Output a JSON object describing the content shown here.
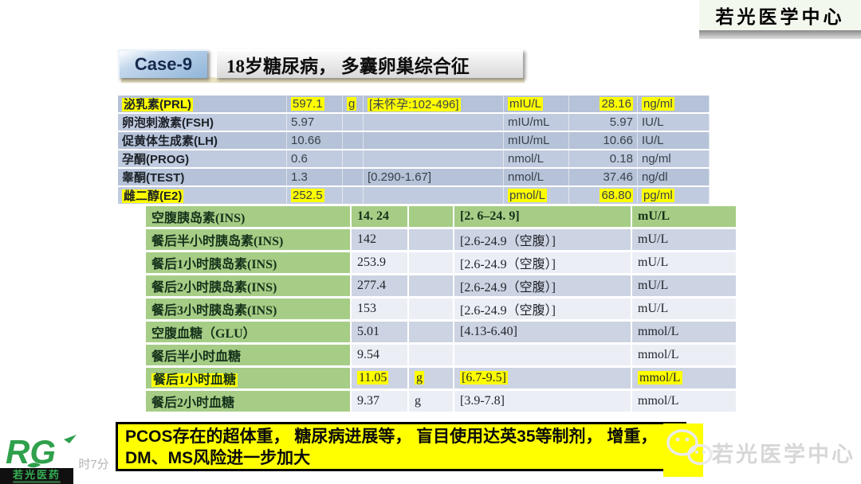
{
  "header": {
    "case_label": "Case-9",
    "title": "18岁糖尿病， 多囊卵巢综合征",
    "brand": "若光医学中心"
  },
  "hormone_table": {
    "rows": [
      {
        "cells": [
          "泌乳素(PRL)",
          "597.1",
          "g",
          "[未怀孕:102-496]",
          "mIU/L",
          "28.16",
          "ng/ml"
        ],
        "hl": [
          1,
          1,
          1,
          1,
          1,
          1,
          1
        ]
      },
      {
        "cells": [
          "卵泡刺激素(FSH)",
          "5.97",
          "",
          "",
          "mIU/mL",
          "5.97",
          "IU/L"
        ],
        "hl": [
          0,
          0,
          0,
          0,
          0,
          0,
          0
        ]
      },
      {
        "cells": [
          "促黄体生成素(LH)",
          "10.66",
          "",
          "",
          "mIU/mL",
          "10.66",
          "IU/L"
        ],
        "hl": [
          0,
          0,
          0,
          0,
          0,
          0,
          0
        ]
      },
      {
        "cells": [
          "孕酮(PROG)",
          "0.6",
          "",
          "",
          "nmol/L",
          "0.18",
          "ng/ml"
        ],
        "hl": [
          0,
          0,
          0,
          0,
          0,
          0,
          0
        ]
      },
      {
        "cells": [
          "睾酮(TEST)",
          "1.3",
          "",
          "[0.290-1.67]",
          "nmol/L",
          "37.46",
          "ng/dl"
        ],
        "hl": [
          0,
          0,
          0,
          0,
          0,
          0,
          0
        ]
      },
      {
        "cells": [
          "雌二醇(E2)",
          "252.5",
          "",
          "",
          "pmol/L",
          "68.80",
          "pg/ml"
        ],
        "hl": [
          1,
          1,
          0,
          0,
          1,
          1,
          1
        ]
      }
    ]
  },
  "glucose_table": {
    "rows": [
      {
        "cells": [
          "空腹胰岛素(INS)",
          "14. 24",
          "",
          "[2. 6–24. 9]",
          "mU/L"
        ],
        "hl": [
          0,
          0,
          0,
          0,
          0
        ],
        "green_row": true
      },
      {
        "cells": [
          "餐后半小时胰岛素(INS)",
          "142",
          "",
          "[2.6-24.9（空腹）]",
          "mU/L"
        ],
        "hl": [
          0,
          0,
          0,
          0,
          0
        ]
      },
      {
        "cells": [
          "餐后1小时胰岛素(INS)",
          "253.9",
          "",
          "[2.6-24.9（空腹）]",
          "mU/L"
        ],
        "hl": [
          0,
          0,
          0,
          0,
          0
        ]
      },
      {
        "cells": [
          "餐后2小时胰岛素(INS)",
          "277.4",
          "",
          "[2.6-24.9（空腹）]",
          "mU/L"
        ],
        "hl": [
          0,
          0,
          0,
          0,
          0
        ]
      },
      {
        "cells": [
          "餐后3小时胰岛素(INS)",
          "153",
          "",
          "[2.6-24.9（空腹）]",
          "mU/L"
        ],
        "hl": [
          0,
          0,
          0,
          0,
          0
        ]
      },
      {
        "cells": [
          "空腹血糖（GLU）",
          "5.01",
          "",
          "[4.13-6.40]",
          "mmol/L"
        ],
        "hl": [
          0,
          0,
          0,
          0,
          0
        ]
      },
      {
        "cells": [
          "餐后半小时血糖",
          "9.54",
          "",
          "",
          "mmol/L"
        ],
        "hl": [
          0,
          0,
          0,
          0,
          0
        ]
      },
      {
        "cells": [
          "餐后1小时血糖",
          "11.05",
          "g",
          "[6.7-9.5]",
          "mmol/L"
        ],
        "hl": [
          1,
          1,
          1,
          1,
          1
        ]
      },
      {
        "cells": [
          "餐后2小时血糖",
          "9.37",
          "g",
          "[3.9-7.8]",
          "mmol/L"
        ],
        "hl": [
          0,
          0,
          0,
          0,
          0
        ]
      }
    ]
  },
  "banner": {
    "line1": "PCOS存在的超体重， 糖尿病进展等， 盲目使用达英35等制剂， 增重，",
    "line2": "DM、MS风险进一步加大"
  },
  "footer": {
    "timestamp": "下午8时7分",
    "logo_text": "RG",
    "logo_caption": "若光医药",
    "watermark": "若光医学中心"
  },
  "colors": {
    "highlight": "#ffff00",
    "table_green": "#a6cd86",
    "table_blue": "#b5c2d8",
    "banner_bg": "#ffff00",
    "logo_green": "#2fa04c"
  }
}
